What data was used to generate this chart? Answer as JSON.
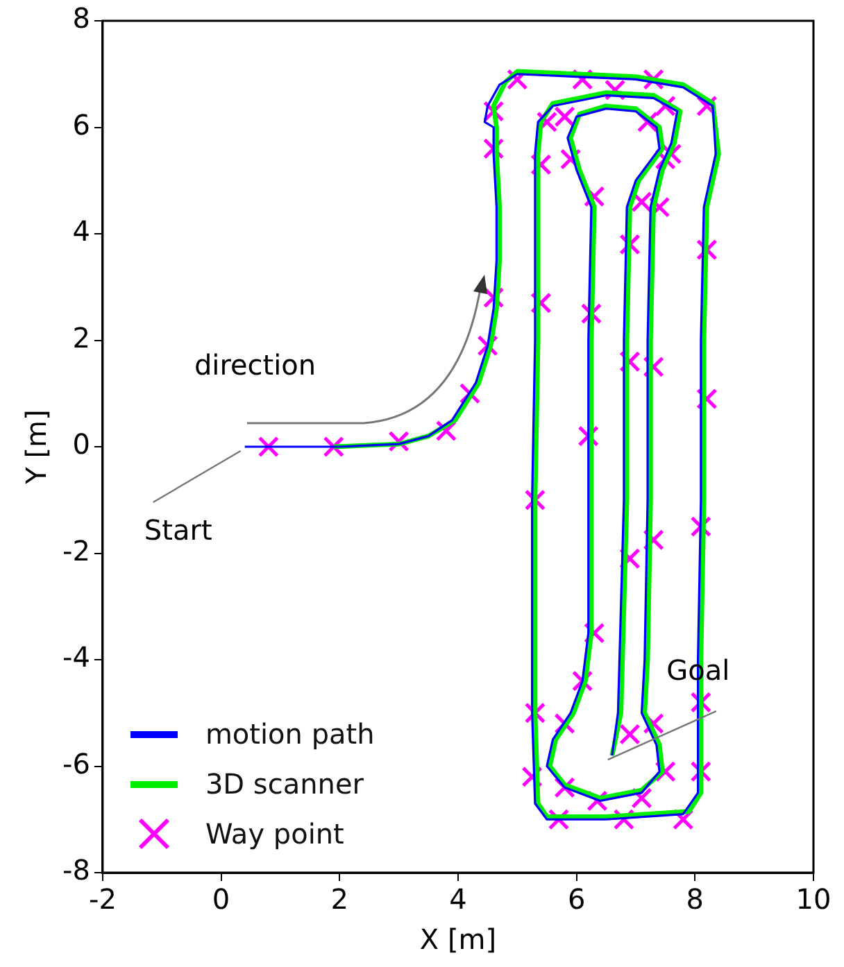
{
  "chart_data": {
    "type": "line",
    "xlabel": "X [m]",
    "ylabel": "Y [m]",
    "xlim": [
      -2,
      10
    ],
    "xticks": [
      -2,
      0,
      2,
      4,
      6,
      8,
      10
    ],
    "ylim": [
      -8,
      8
    ],
    "yticks": [
      -8,
      -6,
      -4,
      -2,
      0,
      2,
      4,
      6,
      8
    ],
    "grid": false,
    "legend": "bottom left",
    "line_style": "solid",
    "annotations": [
      "direction",
      {
        "text": "Start",
        "x": 0.4,
        "y": 0
      },
      {
        "text": "Goal",
        "x": 6.6,
        "y": -5.8
      }
    ],
    "series": [
      {
        "name": "motion path",
        "type": "line",
        "marker": "none",
        "color": "#0000ff",
        "x": [
          0.4,
          1,
          2,
          3,
          3.5,
          3.9,
          4.3,
          4.5,
          4.6,
          4.65,
          4.65,
          4.6,
          4.6,
          4.45,
          4.5,
          4.7,
          5.0,
          6.0,
          7.0,
          7.8,
          8.3,
          8.35,
          8.15,
          8.1,
          8.1,
          8.05,
          8.05,
          7.8,
          6.5,
          5.5,
          5.3,
          5.25,
          5.25,
          5.3,
          5.3,
          5.35,
          5.6,
          6.5,
          7.3,
          7.7,
          7.6,
          7.4,
          7.25,
          7.2,
          7.2,
          7.15,
          7.1,
          7.35,
          7.4,
          7.1,
          6.4,
          5.8,
          5.5,
          5.6,
          5.9,
          6.1,
          6.2,
          6.2,
          6.25,
          6.0,
          5.85,
          6.0,
          6.5,
          7.0,
          7.35,
          7.4,
          7.0,
          6.85,
          6.8,
          6.8,
          6.75,
          6.7,
          6.6
        ],
        "values": [
          0,
          0,
          0,
          0.05,
          0.2,
          0.5,
          1.2,
          1.9,
          2.6,
          3.5,
          4.5,
          5.5,
          6.0,
          6.1,
          6.4,
          6.8,
          7.0,
          6.95,
          6.9,
          6.75,
          6.4,
          5.5,
          4.5,
          2,
          -1,
          -4,
          -6.5,
          -6.9,
          -7.0,
          -7.0,
          -6.7,
          -5,
          -1,
          2,
          5.5,
          6.1,
          6.4,
          6.6,
          6.55,
          6.3,
          5.7,
          5.2,
          4.5,
          2,
          -1,
          -4,
          -5,
          -5.6,
          -6.1,
          -6.5,
          -6.65,
          -6.4,
          -6.0,
          -5.5,
          -5,
          -4.4,
          -3.5,
          2,
          4.5,
          5.2,
          5.8,
          6.2,
          6.35,
          6.3,
          6.0,
          5.6,
          5.0,
          4.5,
          2,
          -1,
          -3,
          -5,
          -5.8
        ]
      },
      {
        "name": "3D scanner",
        "type": "line",
        "marker": "none",
        "color": "#00ee00",
        "x": [
          1.9,
          3,
          3.5,
          3.95,
          4.35,
          4.55,
          4.65,
          4.7,
          4.7,
          4.65,
          4.65,
          4.6,
          4.8,
          5.0,
          6.0,
          7.0,
          7.8,
          8.3,
          8.4,
          8.2,
          8.15,
          8.15,
          8.1,
          8.1,
          7.9,
          6.5,
          5.5,
          5.35,
          5.3,
          5.3,
          5.35,
          5.35,
          5.4,
          5.6,
          6.5,
          7.3,
          7.75,
          7.65,
          7.45,
          7.3,
          7.25,
          7.25,
          7.2,
          7.15,
          7.4,
          7.45,
          7.1,
          6.4,
          5.8,
          5.55,
          5.65,
          5.95,
          6.15,
          6.25,
          6.25,
          6.3,
          6.05,
          5.9,
          6.05,
          6.5,
          7.0,
          7.4,
          7.45,
          7.05,
          6.9,
          6.85,
          6.85,
          6.8,
          6.75,
          6.6
        ],
        "values": [
          0,
          0.05,
          0.2,
          0.5,
          1.2,
          1.9,
          2.6,
          3.5,
          4.5,
          5.5,
          6.0,
          6.4,
          6.85,
          7.05,
          7.0,
          6.95,
          6.8,
          6.45,
          5.5,
          4.5,
          2,
          -1,
          -4,
          -6.5,
          -6.85,
          -6.95,
          -6.95,
          -6.7,
          -5,
          -1,
          2,
          5.5,
          6.1,
          6.45,
          6.65,
          6.6,
          6.3,
          5.7,
          5.2,
          4.5,
          2,
          -1,
          -4,
          -5,
          -5.6,
          -6.1,
          -6.45,
          -6.6,
          -6.35,
          -6.0,
          -5.5,
          -5,
          -4.4,
          -3.5,
          2,
          4.5,
          5.2,
          5.8,
          6.25,
          6.4,
          6.35,
          6.0,
          5.6,
          5.0,
          4.5,
          2,
          -1,
          -3,
          -5,
          -5.8
        ]
      },
      {
        "name": "Way point",
        "type": "scatter",
        "marker": "cross",
        "color": "#ff00ff",
        "x": [
          0.8,
          1.9,
          3.0,
          3.8,
          4.2,
          4.5,
          4.6,
          4.6,
          4.6,
          5.0,
          6.1,
          6.65,
          7.3,
          8.2,
          7.5,
          7.2,
          5.5,
          5.8,
          5.4,
          5.9,
          7.5,
          7.6,
          6.3,
          7.1,
          7.4,
          6.9,
          8.2,
          5.4,
          6.25,
          6.9,
          7.3,
          8.2,
          6.2,
          5.3,
          8.1,
          7.3,
          6.9,
          6.3,
          6.1,
          5.3,
          8.1,
          5.8,
          6.9,
          7.3,
          7.5,
          8.1,
          5.25,
          5.8,
          6.35,
          7.1,
          5.7,
          6.8,
          7.8
        ],
        "values": [
          0,
          0,
          0.1,
          0.3,
          1.0,
          1.9,
          2.8,
          5.6,
          6.3,
          6.9,
          6.9,
          6.7,
          6.9,
          6.4,
          6.4,
          6.1,
          6.1,
          6.2,
          5.3,
          5.4,
          5.4,
          5.5,
          4.7,
          4.6,
          4.5,
          3.8,
          3.7,
          2.7,
          2.5,
          1.6,
          1.5,
          0.9,
          0.2,
          -1.0,
          -1.5,
          -1.75,
          -2.1,
          -3.5,
          -4.4,
          -5.0,
          -4.8,
          -5.2,
          -5.4,
          -5.2,
          -6.1,
          -6.1,
          -6.2,
          -6.4,
          -6.65,
          -6.6,
          -7.0,
          -7.0,
          -7.0
        ]
      }
    ]
  }
}
